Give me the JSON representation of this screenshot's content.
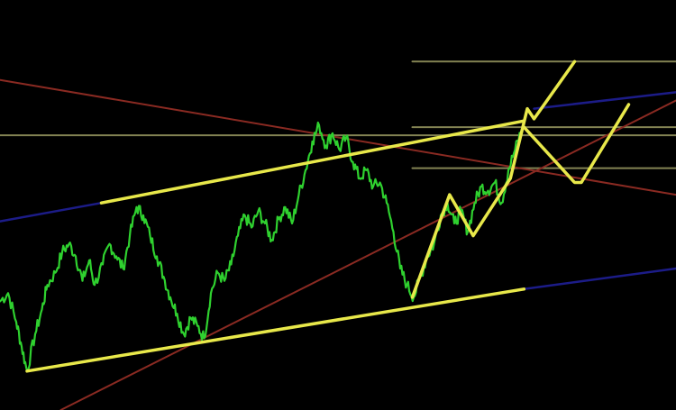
{
  "chart_data": {
    "type": "line",
    "title": "",
    "xlabel": "",
    "ylabel": "",
    "grid": false,
    "legend": "none",
    "x_range": [
      0,
      100
    ],
    "y_range": [
      0,
      100
    ],
    "colors": {
      "background": "#000000",
      "price": "#2fd12f",
      "channel": "#e8e84a",
      "projection": "#e8e84a",
      "levels": "#9a9a62",
      "trend_red": "#8a2a22",
      "trend_blue": "#1c1c88"
    },
    "series": [
      {
        "role": "price",
        "points": [
          [
            0.0,
            26.5
          ],
          [
            1.2,
            28.5
          ],
          [
            2.4,
            21.5
          ],
          [
            3.2,
            15.5
          ],
          [
            4.0,
            9.5
          ],
          [
            5.2,
            18.5
          ],
          [
            6.2,
            24.5
          ],
          [
            7.0,
            30.5
          ],
          [
            8.2,
            33.5
          ],
          [
            9.2,
            38.5
          ],
          [
            10.2,
            40.5
          ],
          [
            11.2,
            37.5
          ],
          [
            12.2,
            31.5
          ],
          [
            13.2,
            36.5
          ],
          [
            14.0,
            30.5
          ],
          [
            15.2,
            35.5
          ],
          [
            16.2,
            40.5
          ],
          [
            17.2,
            37.5
          ],
          [
            18.2,
            34.5
          ],
          [
            19.2,
            42.5
          ],
          [
            20.2,
            49.5
          ],
          [
            21.2,
            47.5
          ],
          [
            22.2,
            42.5
          ],
          [
            23.2,
            37.5
          ],
          [
            24.2,
            32.5
          ],
          [
            25.2,
            27.5
          ],
          [
            26.2,
            23.5
          ],
          [
            27.2,
            18.5
          ],
          [
            28.2,
            22.5
          ],
          [
            29.2,
            20.5
          ],
          [
            30.2,
            17.5
          ],
          [
            31.2,
            28.5
          ],
          [
            32.2,
            33.5
          ],
          [
            33.2,
            31.5
          ],
          [
            34.2,
            35.5
          ],
          [
            35.2,
            42.5
          ],
          [
            36.2,
            47.5
          ],
          [
            37.2,
            44.5
          ],
          [
            38.2,
            48.5
          ],
          [
            39.2,
            45.5
          ],
          [
            40.2,
            41.5
          ],
          [
            41.2,
            46.5
          ],
          [
            42.2,
            49.5
          ],
          [
            43.2,
            45.5
          ],
          [
            44.2,
            52.5
          ],
          [
            45.2,
            58.5
          ],
          [
            46.2,
            65.5
          ],
          [
            47.2,
            69.5
          ],
          [
            48.2,
            64.5
          ],
          [
            49.2,
            67.5
          ],
          [
            50.2,
            63.5
          ],
          [
            51.2,
            66.5
          ],
          [
            52.2,
            60.5
          ],
          [
            53.2,
            56.5
          ],
          [
            54.2,
            58.5
          ],
          [
            55.2,
            54.5
          ],
          [
            56.2,
            55.5
          ],
          [
            57.2,
            50.5
          ],
          [
            58.2,
            43.5
          ],
          [
            59.2,
            34.5
          ],
          [
            60.2,
            30.5
          ],
          [
            61.2,
            27.5
          ],
          [
            62.2,
            32.5
          ],
          [
            63.2,
            37.5
          ],
          [
            64.2,
            40.5
          ],
          [
            65.2,
            47.5
          ],
          [
            66.2,
            50.5
          ],
          [
            67.2,
            45.5
          ],
          [
            68.2,
            48.5
          ],
          [
            69.2,
            43.5
          ],
          [
            70.2,
            50.5
          ],
          [
            71.2,
            54.5
          ],
          [
            72.2,
            53.5
          ],
          [
            73.2,
            55.5
          ],
          [
            74.2,
            50.5
          ],
          [
            75.2,
            58.5
          ],
          [
            76.2,
            63.5
          ],
          [
            77.2,
            68.5
          ]
        ]
      },
      {
        "role": "channel-upper",
        "points": [
          [
            15.0,
            50.5
          ],
          [
            77.5,
            70.5
          ]
        ]
      },
      {
        "role": "channel-lower",
        "points": [
          [
            4.0,
            9.5
          ],
          [
            77.5,
            29.5
          ]
        ]
      },
      {
        "role": "channel-lower-extension",
        "points": [
          [
            77.5,
            29.5
          ],
          [
            100.0,
            34.5
          ]
        ]
      },
      {
        "role": "channel-upper-extension",
        "points": [
          [
            0.0,
            46.0
          ],
          [
            15.0,
            50.5
          ]
        ]
      },
      {
        "role": "projection-1",
        "points": [
          [
            61.0,
            27.5
          ],
          [
            66.5,
            52.5
          ],
          [
            70.0,
            42.5
          ],
          [
            75.5,
            56.5
          ],
          [
            78.0,
            73.5
          ],
          [
            79.0,
            71.0
          ],
          [
            85.0,
            85.0
          ]
        ]
      },
      {
        "role": "projection-2",
        "points": [
          [
            77.5,
            69.0
          ],
          [
            85.0,
            55.5
          ],
          [
            86.0,
            55.5
          ],
          [
            93.0,
            74.5
          ]
        ]
      },
      {
        "role": "trend-red-descending",
        "points": [
          [
            0.0,
            80.5
          ],
          [
            100.0,
            52.5
          ]
        ]
      },
      {
        "role": "trend-red-ascending",
        "points": [
          [
            9.0,
            0.0
          ],
          [
            100.0,
            75.5
          ]
        ]
      },
      {
        "role": "trend-blue",
        "points": [
          [
            79.0,
            73.5
          ],
          [
            100.0,
            77.5
          ]
        ]
      }
    ],
    "levels": [
      85.0,
      69.0,
      67.0,
      59.0
    ]
  }
}
